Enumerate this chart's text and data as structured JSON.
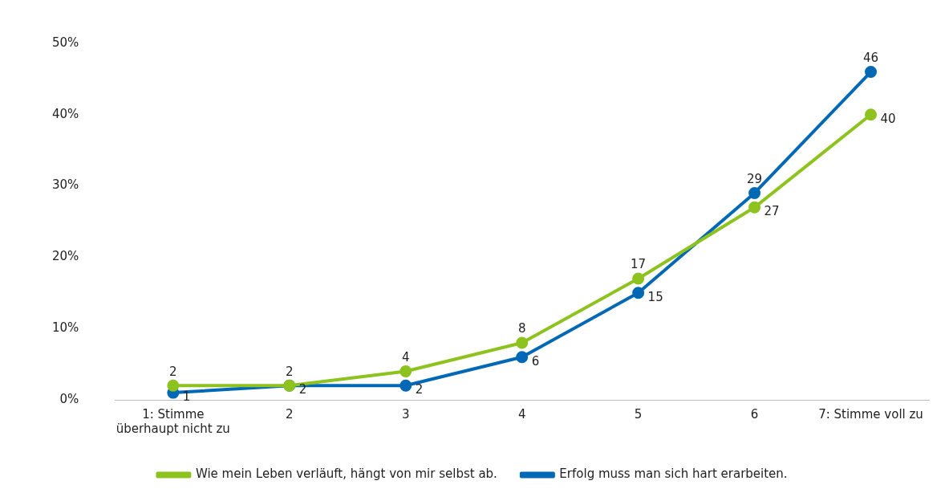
{
  "chart_data": {
    "type": "line",
    "categories": [
      "1: Stimme überhaupt nicht zu",
      "2",
      "3",
      "4",
      "5",
      "6",
      "7: Stimme voll zu"
    ],
    "series": [
      {
        "name": "Wie mein Leben verläuft, hängt von mir selbst ab.",
        "color": "#8dc21f",
        "values": [
          2,
          2,
          4,
          8,
          17,
          27,
          40
        ]
      },
      {
        "name": "Erfolg muss man sich hart erarbeiten.",
        "color": "#0068b4",
        "values": [
          1,
          2,
          2,
          6,
          15,
          29,
          46
        ]
      }
    ],
    "ylim": [
      0,
      50
    ],
    "yticks": [
      {
        "value": 0,
        "label": "0%"
      },
      {
        "value": 10,
        "label": "10%"
      },
      {
        "value": 20,
        "label": "20%"
      },
      {
        "value": 30,
        "label": "30%"
      },
      {
        "value": 40,
        "label": "40%"
      },
      {
        "value": 50,
        "label": "50%"
      }
    ],
    "grid": false,
    "legend": "bottom",
    "marker": "circle",
    "line_style": "solid",
    "data_labels": true
  }
}
